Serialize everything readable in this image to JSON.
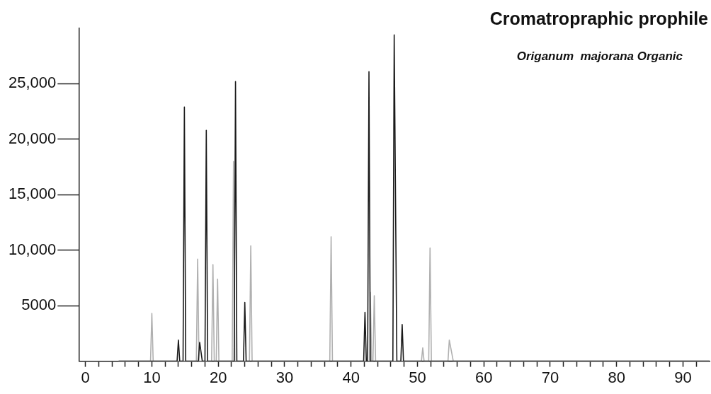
{
  "chart_data": {
    "type": "line",
    "title": "Cromatropraphic prophile",
    "subtitle": "Origanum  majorana Organic",
    "series": [
      {
        "color": "#1a1a1a",
        "x": [
          5,
          13.8,
          14,
          14.2,
          14.7,
          14.9,
          15.1,
          17.0,
          17.2,
          17.6,
          18.0,
          18.2,
          18.4,
          22.4,
          22.6,
          22.8,
          23.8,
          24.0,
          24.2,
          41.9,
          42.1,
          42.3,
          42.5,
          42.7,
          42.9,
          46.3,
          46.5,
          46.9,
          47.5,
          47.7,
          47.9,
          94
        ],
        "values": [
          0,
          0,
          1900,
          0,
          0,
          22900,
          0,
          0,
          1700,
          0,
          0,
          20800,
          0,
          0,
          25200,
          0,
          0,
          5300,
          0,
          0,
          4400,
          0,
          0,
          26100,
          0,
          0,
          29400,
          0,
          0,
          3300,
          0,
          0
        ]
      },
      {
        "color": "#b0b0b0",
        "x": [
          5,
          9.8,
          10,
          10.2,
          16.7,
          16.9,
          17.1,
          19.0,
          19.2,
          19.4,
          19.7,
          19.9,
          20.1,
          22.1,
          22.3,
          22.5,
          24.7,
          24.9,
          25.1,
          36.8,
          37,
          37.2,
          42.8,
          42.9,
          43.1,
          43.3,
          43.5,
          43.7,
          50.6,
          50.8,
          51.0,
          51.7,
          51.9,
          52.1,
          54.6,
          54.8,
          55.4,
          94
        ],
        "values": [
          0,
          0,
          4300,
          0,
          0,
          9200,
          0,
          0,
          8700,
          0,
          0,
          7400,
          0,
          0,
          18000,
          0,
          0,
          10400,
          0,
          0,
          11200,
          0,
          0,
          6200,
          0,
          0,
          5900,
          0,
          0,
          1200,
          0,
          0,
          10200,
          0,
          0,
          1900,
          0,
          0
        ]
      }
    ],
    "xlim": [
      -1,
      94
    ],
    "xticks": [
      0,
      {
        "value": 2,
        "label": null
      },
      {
        "value": 4,
        "label": null
      },
      {
        "value": 6,
        "label": null
      },
      {
        "value": 8,
        "label": null
      },
      10,
      {
        "value": 12,
        "label": null
      },
      {
        "value": 14,
        "label": null
      },
      {
        "value": 16,
        "label": null
      },
      {
        "value": 18,
        "label": null
      },
      20,
      {
        "value": 22,
        "label": null
      },
      {
        "value": 24,
        "label": null
      },
      {
        "value": 26,
        "label": null
      },
      {
        "value": 28,
        "label": null
      },
      30,
      {
        "value": 32,
        "label": null
      },
      {
        "value": 34,
        "label": null
      },
      {
        "value": 36,
        "label": null
      },
      {
        "value": 38,
        "label": null
      },
      40,
      {
        "value": 42,
        "label": null
      },
      {
        "value": 44,
        "label": null
      },
      {
        "value": 46,
        "label": null
      },
      {
        "value": 48,
        "label": null
      },
      50,
      {
        "value": 52,
        "label": null
      },
      {
        "value": 54,
        "label": null
      },
      {
        "value": 56,
        "label": null
      },
      {
        "value": 58,
        "label": null
      },
      60,
      {
        "value": 62,
        "label": null
      },
      {
        "value": 64,
        "label": null
      },
      {
        "value": 66,
        "label": null
      },
      {
        "value": 68,
        "label": null
      },
      70,
      {
        "value": 72,
        "label": null
      },
      {
        "value": 74,
        "label": null
      },
      {
        "value": 76,
        "label": null
      },
      {
        "value": 78,
        "label": null
      },
      80,
      {
        "value": 82,
        "label": null
      },
      {
        "value": 84,
        "label": null
      },
      {
        "value": 86,
        "label": null
      },
      {
        "value": 88,
        "label": null
      },
      90,
      {
        "value": 92,
        "label": null
      }
    ],
    "ylim": [
      0,
      30000
    ],
    "yticks": [
      5000,
      {
        "value": 10000,
        "label": "10,000"
      },
      {
        "value": 15000,
        "label": "15,000"
      },
      {
        "value": 20000,
        "label": "20,000"
      },
      {
        "value": 25000,
        "label": "25,000"
      }
    ],
    "grid": false,
    "marker": "none",
    "line_style": "solid"
  }
}
